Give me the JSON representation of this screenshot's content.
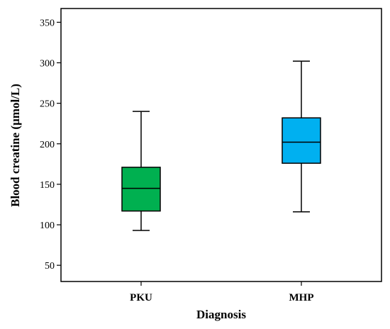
{
  "chart_data": {
    "type": "boxplot",
    "title": "",
    "xlabel": "Diagnosis",
    "ylabel": "Blood creatine (µmol/L)",
    "ylim": [
      30,
      367
    ],
    "yticks": [
      50,
      100,
      150,
      200,
      250,
      300,
      350
    ],
    "grid": false,
    "categories": [
      "PKU",
      "MHP"
    ],
    "boxes": [
      {
        "category": "PKU",
        "whisker_low": 93,
        "q1": 117,
        "median": 145,
        "q3": 171,
        "whisker_high": 240,
        "color": "#00b050"
      },
      {
        "category": "MHP",
        "whisker_low": 116,
        "q1": 176,
        "median": 202,
        "q3": 232,
        "whisker_high": 302,
        "color": "#00b0f0"
      }
    ]
  }
}
